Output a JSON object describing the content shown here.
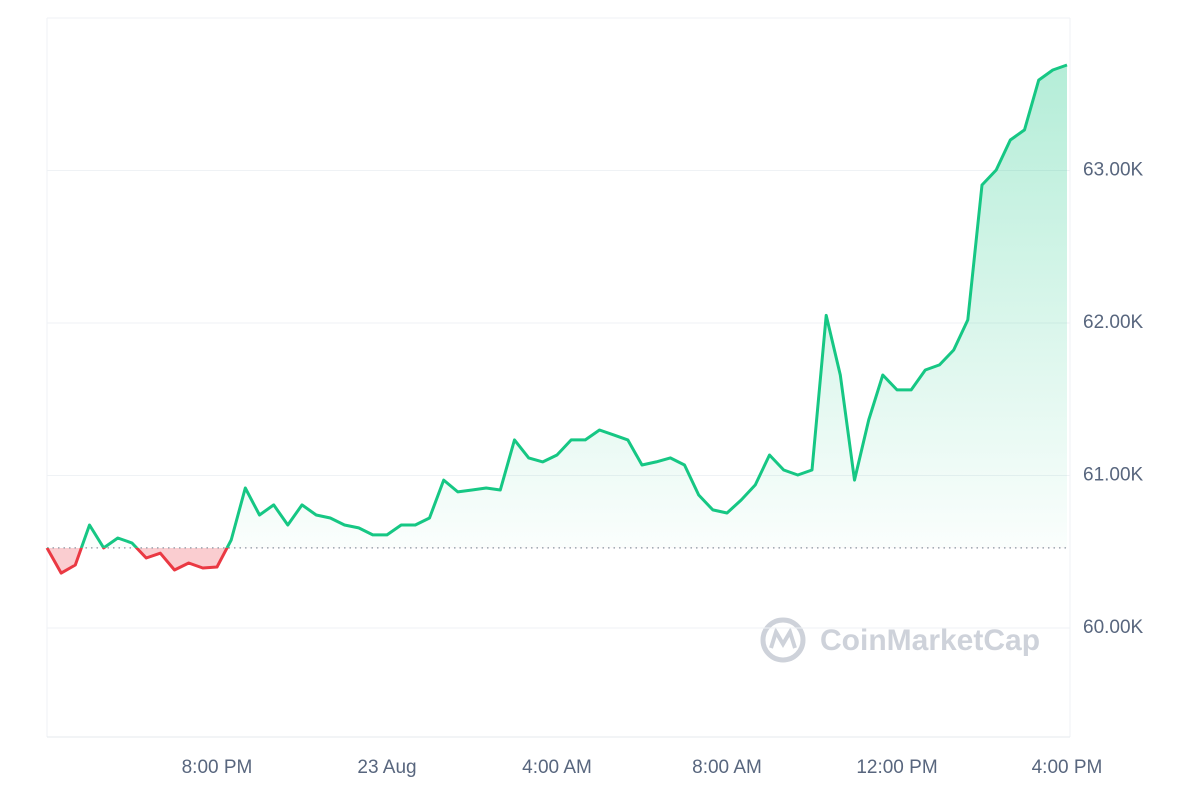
{
  "chart_data": {
    "type": "line",
    "categories": [
      null,
      null,
      null,
      null,
      null,
      null,
      null,
      null,
      null,
      null,
      null,
      null,
      "8:00 PM",
      null,
      null,
      null,
      null,
      null,
      null,
      null,
      null,
      null,
      null,
      null,
      "23 Aug",
      null,
      null,
      null,
      null,
      null,
      null,
      null,
      null,
      null,
      null,
      null,
      "4:00 AM",
      null,
      null,
      null,
      null,
      null,
      null,
      null,
      null,
      null,
      null,
      null,
      "8:00 AM",
      null,
      null,
      null,
      null,
      null,
      null,
      null,
      null,
      null,
      null,
      null,
      "12:00 PM",
      null,
      null,
      null,
      null,
      null,
      null,
      null,
      null,
      null,
      null,
      null,
      "4:00 PM"
    ],
    "values": [
      60525,
      60360,
      60413,
      60675,
      60525,
      60590,
      60557,
      60459,
      60490,
      60380,
      60426,
      60393,
      60400,
      60577,
      60918,
      60741,
      60807,
      60675,
      60807,
      60741,
      60721,
      60675,
      60656,
      60610,
      60610,
      60675,
      60675,
      60721,
      60970,
      60892,
      60905,
      60918,
      60905,
      61233,
      61115,
      61089,
      61134,
      61233,
      61233,
      61298,
      61266,
      61233,
      61069,
      61089,
      61115,
      61069,
      60872,
      60774,
      60754,
      60839,
      60938,
      61134,
      61036,
      61003,
      61036,
      62050,
      61659,
      60970,
      61364,
      61659,
      61561,
      61561,
      61692,
      61725,
      61823,
      62020,
      62905,
      63003,
      63200,
      63266,
      63593,
      63659,
      63692
    ],
    "up_color": "#16c784",
    "down_color": "#ea3943",
    "ylim": [
      59285,
      64000
    ],
    "yticks": [
      {
        "value": 60000,
        "label": "60.00K"
      },
      {
        "value": 61000,
        "label": "61.00K"
      },
      {
        "value": 62000,
        "label": "62.00K"
      },
      {
        "value": 63000,
        "label": "63.00K"
      }
    ],
    "grid": true,
    "watermark": "CoinMarketCap"
  }
}
